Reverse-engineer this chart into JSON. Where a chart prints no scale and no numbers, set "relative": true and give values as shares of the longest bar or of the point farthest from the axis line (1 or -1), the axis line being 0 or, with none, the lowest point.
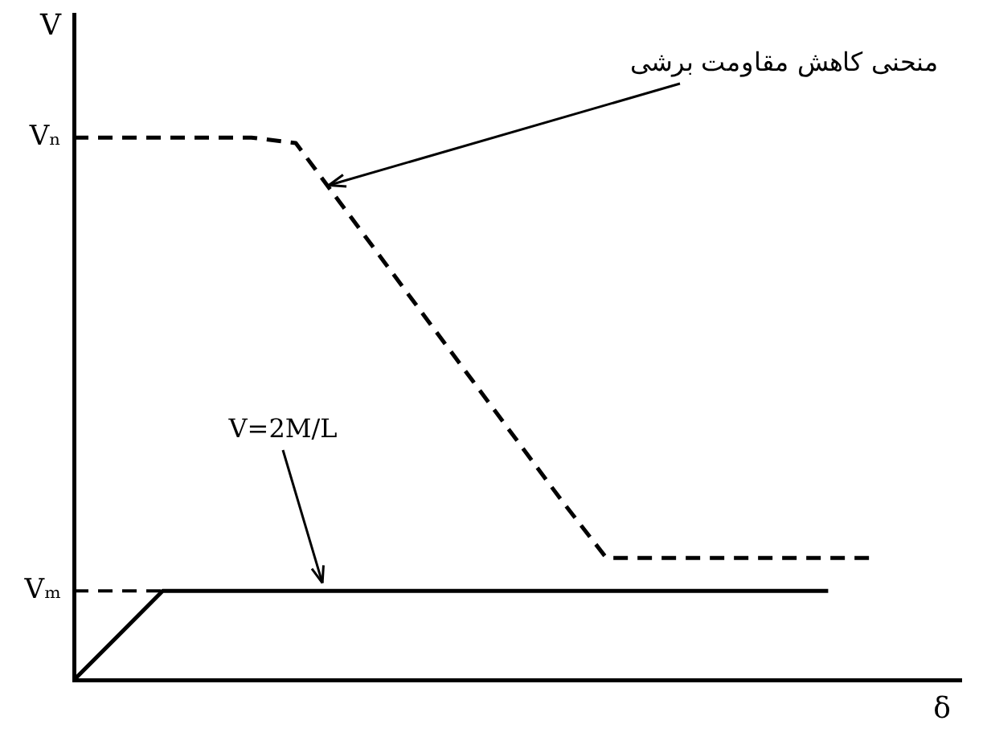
{
  "chart_data": {
    "type": "line",
    "relative": true,
    "xlabel": "δ",
    "ylabel": "V",
    "categories": [
      null,
      null,
      null,
      null,
      null,
      null,
      null,
      null,
      null,
      null,
      null,
      null,
      null,
      null,
      null,
      null,
      null,
      null,
      null,
      null,
      null
    ],
    "marker": "none",
    "grid": false,
    "legend": false,
    "series": [
      {
        "color": "#000000",
        "line_style": "dashed",
        "values": [
          1,
          1,
          1,
          1,
          1,
          0.99,
          0.88,
          0.77,
          0.66,
          0.55,
          0.44,
          0.33,
          0.225,
          0.225,
          0.225,
          0.225,
          0.225,
          0.225,
          0.225,
          null,
          null
        ]
      },
      {
        "color": "#000000",
        "line_style": "solid",
        "values": [
          0,
          0.082,
          0.164,
          0.164,
          0.164,
          0.164,
          0.164,
          0.164,
          0.164,
          0.164,
          0.164,
          0.164,
          0.164,
          0.164,
          0.164,
          0.164,
          0.164,
          0.164,
          null,
          null,
          null
        ]
      }
    ],
    "ref_lines": [
      {
        "axis": "y",
        "value": 0.164,
        "label": "Vₘ",
        "line_style": "dashed",
        "color": "#000000"
      }
    ],
    "annotations": [
      "منحنی کاهش مقاومت برشی",
      "V=2M/L",
      "Vₙ"
    ]
  }
}
